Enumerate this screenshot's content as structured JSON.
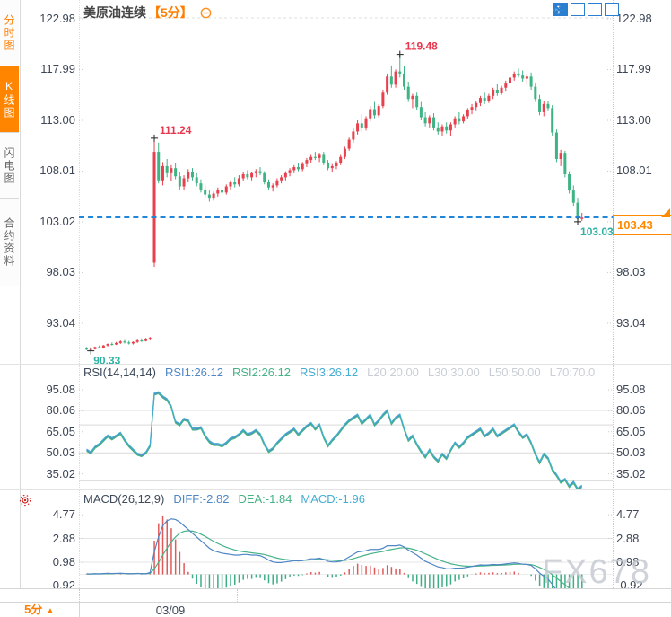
{
  "header": {
    "title": "美原油连续",
    "interval_tag": "【5分】",
    "settings_icon": "indicator-settings-icon"
  },
  "toolbar": {
    "icons": [
      "move-crosshair-icon",
      "zoom-range-icon",
      "axis-scale-icon",
      "exit-icon"
    ]
  },
  "sidebar": {
    "items": [
      {
        "label": "分时图",
        "active": false,
        "accent": true
      },
      {
        "label": "K线图",
        "active": true,
        "accent": false
      },
      {
        "label": "闪电图",
        "active": false,
        "accent": false
      },
      {
        "label": "合约资料",
        "active": false,
        "accent": false
      }
    ]
  },
  "price_box": {
    "value": "103.43"
  },
  "bottom_bar": {
    "period_label": "5分",
    "period_arrow": "▲",
    "date_label": "03/09"
  },
  "watermark": "FX678",
  "rsi_header": {
    "items": [
      {
        "text": "RSI(14,14,14)",
        "color": "#3e4a5a"
      },
      {
        "text": "RSI1:26.12",
        "color": "#4f86c6"
      },
      {
        "text": "RSI2:26.12",
        "color": "#46b286"
      },
      {
        "text": "RSI3:26.12",
        "color": "#46aed2"
      },
      {
        "text": "L20:20.00",
        "color": "#c9ced6"
      },
      {
        "text": "L30:30.00",
        "color": "#c9ced6"
      },
      {
        "text": "L50:50.00",
        "color": "#c9ced6"
      },
      {
        "text": "L70:70.0",
        "color": "#c9ced6"
      }
    ]
  },
  "macd_header": {
    "items": [
      {
        "text": "MACD(26,12,9)",
        "color": "#3e4a5a"
      },
      {
        "text": "DIFF:-2.82",
        "color": "#4f86c6"
      },
      {
        "text": "DEA:-1.84",
        "color": "#46b286"
      },
      {
        "text": "MACD:-1.96",
        "color": "#46aed2"
      }
    ]
  },
  "chart_data": {
    "type": "candlestick+indicators",
    "symbol": "美原油连续",
    "interval": "5分",
    "current_price": 103.43,
    "main_axis": [
      122.98,
      117.99,
      113.0,
      108.01,
      103.02,
      98.03,
      93.04
    ],
    "rsi_axis": [
      95.08,
      80.06,
      65.05,
      50.03,
      35.02
    ],
    "macd_axis": [
      4.77,
      2.88,
      0.98,
      -0.92
    ],
    "rsi_guides": [
      80.06,
      70,
      50,
      30
    ],
    "macd_guides": [
      2.88,
      0.98,
      -0.92
    ],
    "annotations": [
      {
        "index": 16,
        "price": 111.24,
        "label": "111.24",
        "type": "high"
      },
      {
        "index": 74,
        "price": 119.48,
        "label": "119.48",
        "type": "high"
      },
      {
        "index": 1,
        "price": 90.33,
        "label": "90.33",
        "type": "low"
      },
      {
        "index": 116,
        "price": 103.03,
        "label": "103.03",
        "type": "low"
      }
    ],
    "colors": {
      "up": "#e8404d",
      "down": "#3eb383",
      "high_label": "#e8374e",
      "low_label": "#2fb1a3",
      "dashed_line": "#2186d8",
      "rsi_lines": [
        "#4f86c6",
        "#46b286",
        "#46aed2"
      ],
      "macd_diff": "#4f86c6",
      "macd_dea": "#46b286",
      "hist_up": "#e05a5a",
      "hist_down": "#3fae84"
    },
    "candles": [
      [
        90.55,
        90.7,
        90.4,
        90.45
      ],
      [
        90.45,
        90.6,
        90.33,
        90.5
      ],
      [
        90.5,
        90.75,
        90.45,
        90.7
      ],
      [
        90.7,
        90.85,
        90.55,
        90.6
      ],
      [
        90.6,
        90.9,
        90.55,
        90.85
      ],
      [
        90.85,
        91.05,
        90.75,
        91.0
      ],
      [
        91.0,
        91.15,
        90.85,
        90.95
      ],
      [
        90.95,
        91.2,
        90.9,
        91.1
      ],
      [
        91.1,
        91.35,
        91.0,
        91.25
      ],
      [
        91.25,
        91.4,
        91.05,
        91.15
      ],
      [
        91.15,
        91.3,
        90.95,
        91.05
      ],
      [
        91.05,
        91.25,
        90.95,
        91.2
      ],
      [
        91.2,
        91.45,
        91.1,
        91.35
      ],
      [
        91.35,
        91.55,
        91.2,
        91.3
      ],
      [
        91.3,
        91.6,
        91.25,
        91.5
      ],
      [
        91.5,
        91.7,
        91.35,
        91.6
      ],
      [
        99.0,
        111.24,
        98.6,
        109.9
      ],
      [
        109.9,
        110.8,
        106.8,
        107.1
      ],
      [
        107.1,
        108.9,
        106.6,
        108.5
      ],
      [
        108.5,
        109.2,
        107.4,
        107.8
      ],
      [
        107.8,
        108.6,
        107.0,
        108.3
      ],
      [
        108.3,
        108.8,
        107.2,
        107.5
      ],
      [
        107.5,
        107.9,
        106.2,
        106.5
      ],
      [
        106.5,
        107.6,
        106.1,
        107.3
      ],
      [
        107.3,
        108.2,
        106.9,
        107.9
      ],
      [
        107.9,
        108.3,
        107.1,
        107.4
      ],
      [
        107.4,
        107.8,
        106.5,
        106.8
      ],
      [
        106.8,
        107.2,
        105.9,
        106.2
      ],
      [
        106.2,
        106.6,
        105.4,
        105.7
      ],
      [
        105.7,
        106.1,
        105.0,
        105.3
      ],
      [
        105.3,
        106.0,
        105.1,
        105.8
      ],
      [
        105.8,
        106.4,
        105.5,
        106.2
      ],
      [
        106.2,
        106.5,
        105.6,
        105.9
      ],
      [
        105.9,
        106.7,
        105.7,
        106.5
      ],
      [
        106.5,
        107.1,
        106.2,
        106.9
      ],
      [
        106.9,
        107.4,
        106.4,
        106.7
      ],
      [
        106.7,
        107.6,
        106.5,
        107.3
      ],
      [
        107.3,
        107.9,
        107.0,
        107.7
      ],
      [
        107.7,
        108.1,
        107.2,
        107.4
      ],
      [
        107.4,
        107.9,
        107.1,
        107.8
      ],
      [
        107.8,
        108.2,
        107.4,
        108.0
      ],
      [
        108.0,
        108.4,
        107.6,
        107.8
      ],
      [
        107.8,
        108.0,
        106.7,
        106.9
      ],
      [
        106.9,
        107.2,
        106.2,
        106.4
      ],
      [
        106.4,
        106.8,
        106.0,
        106.6
      ],
      [
        106.6,
        107.3,
        106.4,
        107.1
      ],
      [
        107.1,
        107.6,
        106.8,
        107.4
      ],
      [
        107.4,
        108.0,
        107.1,
        107.8
      ],
      [
        107.8,
        108.3,
        107.5,
        108.1
      ],
      [
        108.1,
        108.6,
        107.8,
        108.4
      ],
      [
        108.4,
        108.8,
        108.0,
        108.2
      ],
      [
        108.2,
        108.9,
        108.0,
        108.7
      ],
      [
        108.7,
        109.3,
        108.4,
        109.1
      ],
      [
        109.1,
        109.6,
        108.8,
        109.4
      ],
      [
        109.4,
        109.9,
        109.1,
        109.3
      ],
      [
        109.3,
        109.8,
        108.9,
        109.6
      ],
      [
        109.6,
        109.9,
        108.6,
        108.8
      ],
      [
        108.8,
        109.1,
        108.1,
        108.3
      ],
      [
        108.3,
        108.7,
        107.9,
        108.5
      ],
      [
        108.5,
        109.0,
        108.2,
        108.8
      ],
      [
        108.8,
        109.6,
        108.6,
        109.4
      ],
      [
        109.4,
        110.4,
        109.2,
        110.2
      ],
      [
        110.2,
        111.3,
        110.0,
        111.1
      ],
      [
        111.1,
        112.2,
        110.8,
        111.9
      ],
      [
        111.9,
        113.0,
        111.6,
        112.7
      ],
      [
        112.7,
        113.6,
        111.9,
        112.3
      ],
      [
        112.3,
        113.4,
        112.0,
        113.2
      ],
      [
        113.2,
        114.4,
        112.9,
        114.1
      ],
      [
        114.1,
        114.8,
        113.2,
        113.5
      ],
      [
        113.5,
        114.6,
        113.3,
        114.4
      ],
      [
        114.4,
        116.0,
        114.2,
        115.8
      ],
      [
        115.8,
        117.6,
        115.5,
        117.3
      ],
      [
        117.3,
        118.4,
        116.2,
        116.5
      ],
      [
        116.5,
        118.0,
        116.2,
        117.8
      ],
      [
        117.8,
        119.48,
        117.2,
        117.6
      ],
      [
        117.6,
        118.3,
        116.0,
        116.3
      ],
      [
        116.3,
        116.8,
        114.8,
        115.1
      ],
      [
        115.1,
        115.6,
        114.2,
        115.4
      ],
      [
        115.4,
        115.8,
        114.0,
        114.3
      ],
      [
        114.3,
        114.8,
        113.0,
        113.3
      ],
      [
        113.3,
        113.8,
        112.4,
        112.7
      ],
      [
        112.7,
        113.5,
        112.3,
        113.3
      ],
      [
        113.3,
        113.7,
        112.0,
        112.3
      ],
      [
        112.3,
        112.8,
        111.6,
        111.9
      ],
      [
        111.9,
        112.6,
        111.5,
        112.4
      ],
      [
        112.4,
        112.8,
        111.7,
        112.0
      ],
      [
        112.0,
        112.8,
        111.5,
        112.6
      ],
      [
        112.6,
        113.4,
        112.3,
        113.2
      ],
      [
        113.2,
        113.8,
        112.6,
        112.9
      ],
      [
        112.9,
        113.6,
        112.7,
        113.4
      ],
      [
        113.4,
        114.2,
        113.1,
        114.0
      ],
      [
        114.0,
        114.6,
        113.6,
        114.3
      ],
      [
        114.3,
        114.9,
        113.9,
        114.7
      ],
      [
        114.7,
        115.4,
        114.4,
        115.2
      ],
      [
        115.2,
        115.8,
        114.6,
        114.9
      ],
      [
        114.9,
        115.6,
        114.7,
        115.4
      ],
      [
        115.4,
        116.2,
        115.1,
        116.0
      ],
      [
        116.0,
        116.6,
        115.4,
        115.7
      ],
      [
        115.7,
        116.4,
        115.5,
        116.2
      ],
      [
        116.2,
        116.9,
        115.9,
        116.7
      ],
      [
        116.7,
        117.4,
        116.4,
        117.2
      ],
      [
        117.2,
        117.8,
        116.9,
        117.6
      ],
      [
        117.6,
        118.1,
        117.2,
        117.4
      ],
      [
        117.4,
        117.9,
        116.8,
        117.1
      ],
      [
        117.1,
        117.6,
        116.5,
        117.3
      ],
      [
        117.3,
        117.7,
        116.0,
        116.3
      ],
      [
        116.3,
        116.7,
        114.8,
        115.1
      ],
      [
        115.1,
        115.5,
        113.5,
        113.8
      ],
      [
        113.8,
        114.9,
        113.4,
        114.6
      ],
      [
        114.6,
        114.9,
        113.9,
        114.2
      ],
      [
        114.2,
        114.5,
        111.5,
        111.8
      ],
      [
        111.8,
        112.1,
        108.9,
        109.2
      ],
      [
        109.2,
        110.1,
        108.5,
        109.8
      ],
      [
        109.8,
        110.0,
        107.4,
        107.7
      ],
      [
        107.7,
        108.0,
        105.8,
        106.1
      ],
      [
        106.1,
        106.6,
        104.6,
        104.9
      ],
      [
        104.9,
        105.3,
        103.03,
        103.3
      ],
      [
        103.3,
        103.9,
        103.1,
        103.43
      ]
    ],
    "rsi": [
      52,
      50,
      54,
      56,
      59,
      62,
      60,
      62,
      64,
      59,
      55,
      52,
      49,
      48,
      50,
      55,
      92,
      93,
      90,
      88,
      83,
      72,
      70,
      74,
      73,
      67,
      67,
      68,
      62,
      58,
      56,
      56,
      55,
      57,
      60,
      61,
      63,
      66,
      63,
      64,
      66,
      63,
      56,
      51,
      53,
      57,
      60,
      63,
      65,
      67,
      63,
      66,
      69,
      71,
      67,
      70,
      61,
      55,
      59,
      62,
      66,
      70,
      73,
      75,
      77,
      71,
      74,
      77,
      70,
      73,
      77,
      80,
      71,
      75,
      77,
      67,
      59,
      62,
      56,
      51,
      47,
      52,
      47,
      44,
      49,
      46,
      52,
      57,
      54,
      57,
      61,
      63,
      65,
      67,
      62,
      64,
      67,
      62,
      64,
      66,
      68,
      70,
      65,
      61,
      63,
      57,
      49,
      43,
      49,
      46,
      38,
      34,
      29,
      31,
      26,
      29,
      24,
      26.12
    ],
    "macd": {
      "diff": [
        0.05,
        0.03,
        0.06,
        0.04,
        0.07,
        0.09,
        0.07,
        0.08,
        0.1,
        0.07,
        0.05,
        0.06,
        0.08,
        0.06,
        0.05,
        0.15,
        1.8,
        3.0,
        3.9,
        4.3,
        4.45,
        4.4,
        4.2,
        3.9,
        3.6,
        3.3,
        3.0,
        2.7,
        2.4,
        2.1,
        1.9,
        1.8,
        1.7,
        1.65,
        1.6,
        1.55,
        1.55,
        1.6,
        1.6,
        1.55,
        1.55,
        1.5,
        1.35,
        1.15,
        1.0,
        0.95,
        0.95,
        1.0,
        1.05,
        1.1,
        1.08,
        1.1,
        1.18,
        1.25,
        1.25,
        1.3,
        1.2,
        1.05,
        1.0,
        1.0,
        1.05,
        1.2,
        1.4,
        1.6,
        1.8,
        1.85,
        1.9,
        2.0,
        2.0,
        2.0,
        2.1,
        2.3,
        2.3,
        2.3,
        2.35,
        2.2,
        1.95,
        1.75,
        1.55,
        1.3,
        1.05,
        0.9,
        0.75,
        0.6,
        0.55,
        0.45,
        0.45,
        0.5,
        0.5,
        0.52,
        0.58,
        0.64,
        0.7,
        0.76,
        0.74,
        0.76,
        0.8,
        0.78,
        0.8,
        0.84,
        0.88,
        0.92,
        0.88,
        0.82,
        0.8,
        0.72,
        0.45,
        0.1,
        -0.15,
        -0.38,
        -0.8,
        -1.3,
        -1.6,
        -1.9,
        -2.2,
        -2.5,
        -2.7,
        -2.82
      ],
      "dea": [
        0.03,
        0.03,
        0.04,
        0.04,
        0.05,
        0.06,
        0.06,
        0.07,
        0.07,
        0.07,
        0.06,
        0.06,
        0.07,
        0.07,
        0.06,
        0.08,
        0.45,
        0.95,
        1.55,
        2.1,
        2.6,
        3.0,
        3.3,
        3.45,
        3.5,
        3.47,
        3.38,
        3.22,
        3.05,
        2.85,
        2.65,
        2.48,
        2.32,
        2.18,
        2.06,
        1.96,
        1.88,
        1.82,
        1.78,
        1.73,
        1.69,
        1.65,
        1.59,
        1.5,
        1.4,
        1.31,
        1.24,
        1.19,
        1.16,
        1.15,
        1.14,
        1.13,
        1.14,
        1.16,
        1.18,
        1.2,
        1.2,
        1.17,
        1.14,
        1.11,
        1.1,
        1.12,
        1.18,
        1.26,
        1.37,
        1.47,
        1.56,
        1.65,
        1.72,
        1.78,
        1.84,
        1.93,
        2.0,
        2.06,
        2.12,
        2.14,
        2.1,
        2.03,
        1.93,
        1.8,
        1.65,
        1.5,
        1.35,
        1.2,
        1.07,
        0.95,
        0.85,
        0.78,
        0.72,
        0.68,
        0.66,
        0.65,
        0.66,
        0.68,
        0.69,
        0.7,
        0.72,
        0.73,
        0.74,
        0.76,
        0.78,
        0.81,
        0.82,
        0.82,
        0.81,
        0.78,
        0.7,
        0.56,
        0.4,
        0.22,
        -0.02,
        -0.3,
        -0.56,
        -0.83,
        -1.1,
        -1.38,
        -1.62,
        -1.84
      ]
    }
  }
}
